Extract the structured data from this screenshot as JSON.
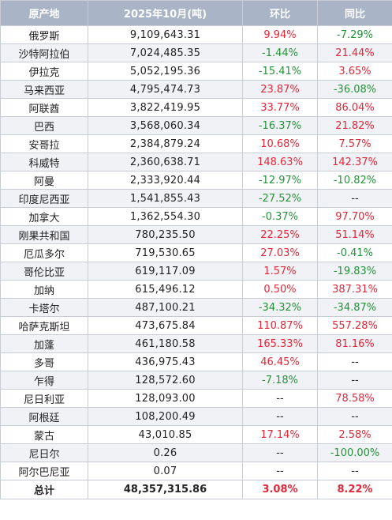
{
  "colors": {
    "up": "#e0283a",
    "down": "#23923a",
    "neutral": "#222222"
  },
  "headers": [
    "原产地",
    "2025年10月(吨)",
    "环比",
    "同比"
  ],
  "rows": [
    {
      "origin": "俄罗斯",
      "amount": "9,109,643.31",
      "mom": "9.94%",
      "yoy": "-7.29%"
    },
    {
      "origin": "沙特阿拉伯",
      "amount": "7,024,485.35",
      "mom": "-1.44%",
      "yoy": "21.44%"
    },
    {
      "origin": "伊拉克",
      "amount": "5,052,195.36",
      "mom": "-15.41%",
      "yoy": "3.65%"
    },
    {
      "origin": "马来西亚",
      "amount": "4,795,474.73",
      "mom": "23.87%",
      "yoy": "-36.08%"
    },
    {
      "origin": "阿联酋",
      "amount": "3,822,419.95",
      "mom": "33.77%",
      "yoy": "86.04%"
    },
    {
      "origin": "巴西",
      "amount": "3,568,060.34",
      "mom": "-16.37%",
      "yoy": "21.82%"
    },
    {
      "origin": "安哥拉",
      "amount": "2,384,879.24",
      "mom": "10.68%",
      "yoy": "7.57%"
    },
    {
      "origin": "科威特",
      "amount": "2,360,638.71",
      "mom": "148.63%",
      "yoy": "142.37%"
    },
    {
      "origin": "阿曼",
      "amount": "2,333,920.44",
      "mom": "-12.97%",
      "yoy": "-10.82%"
    },
    {
      "origin": "印度尼西亚",
      "amount": "1,541,855.43",
      "mom": "-27.52%",
      "yoy": "--"
    },
    {
      "origin": "加拿大",
      "amount": "1,362,554.30",
      "mom": "-0.37%",
      "yoy": "97.70%"
    },
    {
      "origin": "刚果共和国",
      "amount": "780,235.50",
      "mom": "22.25%",
      "yoy": "51.14%"
    },
    {
      "origin": "厄瓜多尔",
      "amount": "719,530.65",
      "mom": "27.03%",
      "yoy": "-0.41%"
    },
    {
      "origin": "哥伦比亚",
      "amount": "619,117.09",
      "mom": "1.57%",
      "yoy": "-19.83%"
    },
    {
      "origin": "加纳",
      "amount": "615,496.12",
      "mom": "0.50%",
      "yoy": "387.31%"
    },
    {
      "origin": "卡塔尔",
      "amount": "487,100.21",
      "mom": "-34.32%",
      "yoy": "-34.87%"
    },
    {
      "origin": "哈萨克斯坦",
      "amount": "473,675.84",
      "mom": "110.87%",
      "yoy": "557.28%"
    },
    {
      "origin": "加蓬",
      "amount": "461,180.58",
      "mom": "165.33%",
      "yoy": "81.16%"
    },
    {
      "origin": "多哥",
      "amount": "436,975.43",
      "mom": "46.45%",
      "yoy": "--"
    },
    {
      "origin": "乍得",
      "amount": "128,572.60",
      "mom": "-7.18%",
      "yoy": "--"
    },
    {
      "origin": "尼日利亚",
      "amount": "128,093.00",
      "mom": "--",
      "yoy": "78.58%"
    },
    {
      "origin": "阿根廷",
      "amount": "108,200.49",
      "mom": "--",
      "yoy": "--"
    },
    {
      "origin": "蒙古",
      "amount": "43,010.85",
      "mom": "17.14%",
      "yoy": "2.58%"
    },
    {
      "origin": "尼日尔",
      "amount": "0.26",
      "mom": "--",
      "yoy": "-100.00%"
    },
    {
      "origin": "阿尔巴尼亚",
      "amount": "0.07",
      "mom": "--",
      "yoy": "--"
    }
  ],
  "total": {
    "label": "总计",
    "amount": "48,357,315.86",
    "mom": "3.08%",
    "yoy": "8.22%"
  }
}
